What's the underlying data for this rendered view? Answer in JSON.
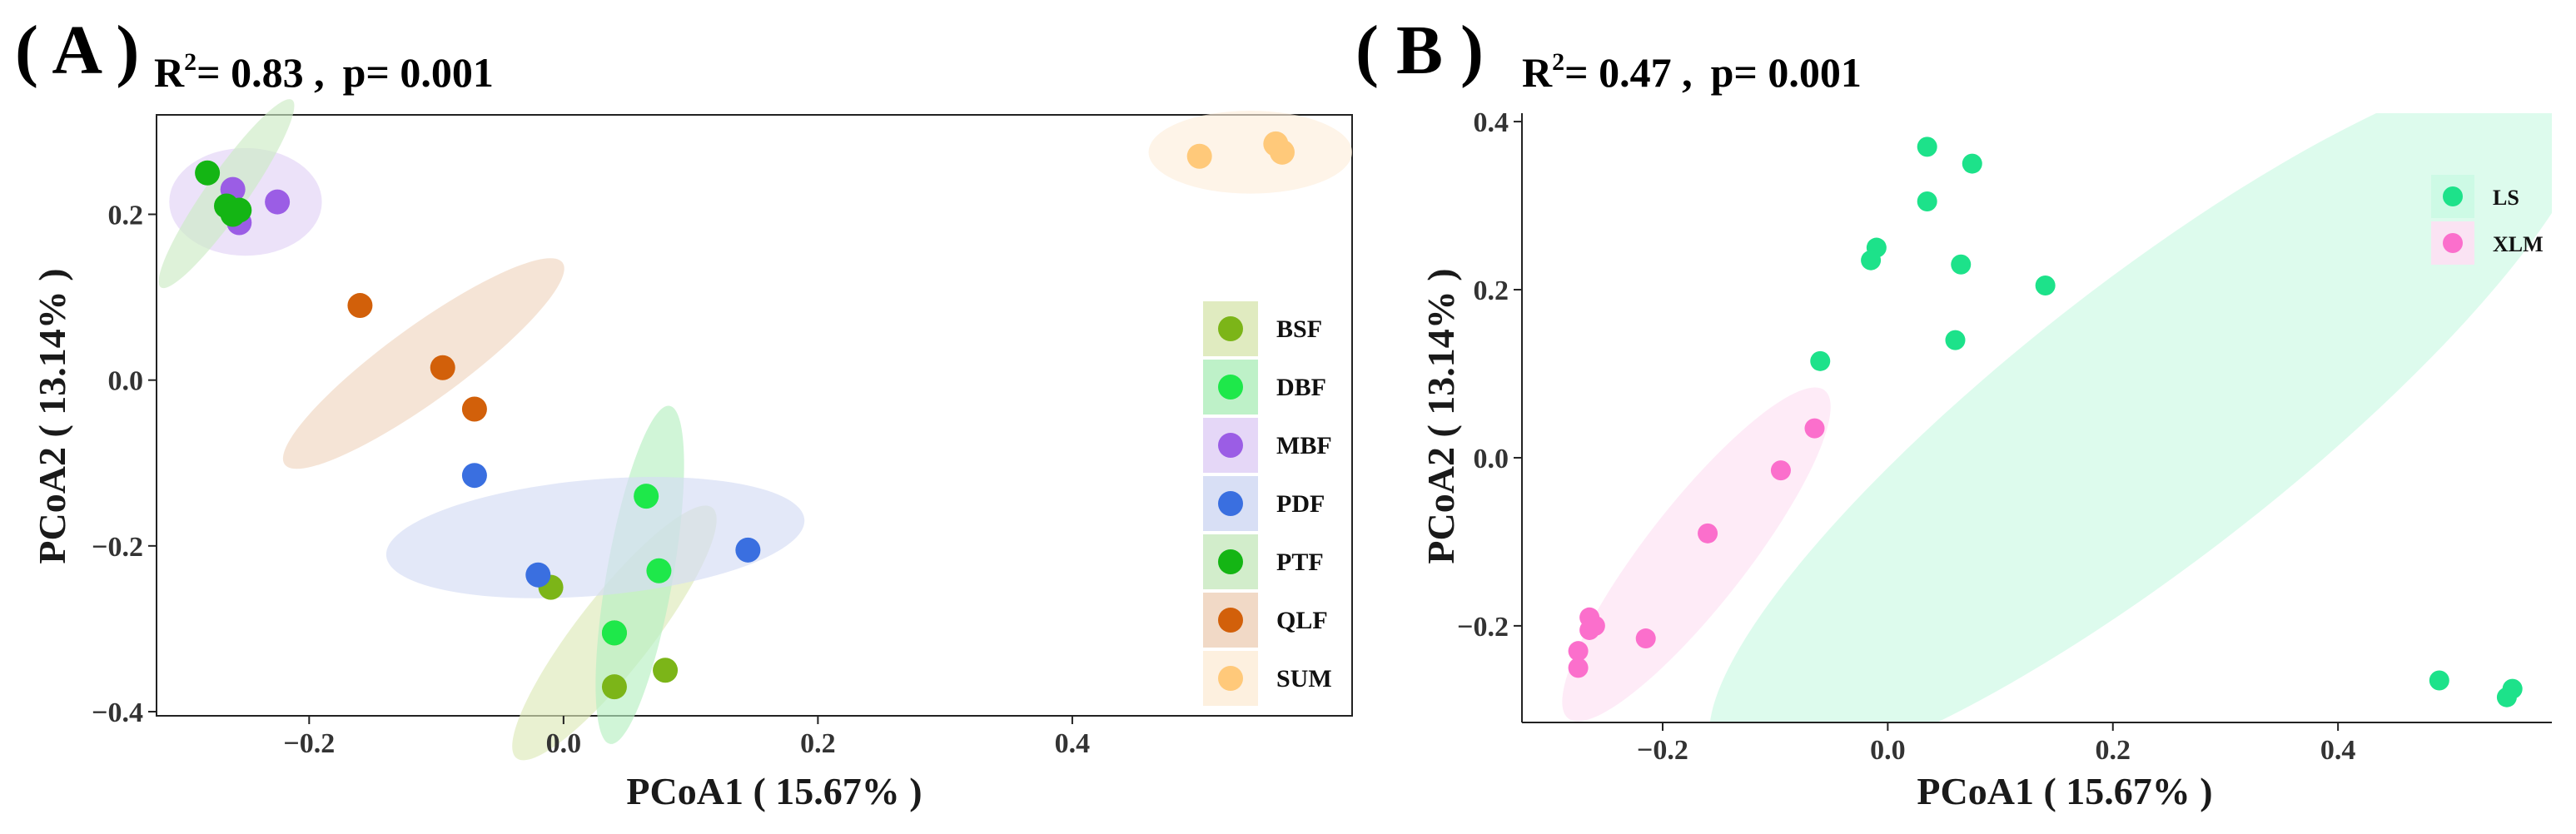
{
  "figure": {
    "panel_a_label": "( A )",
    "panel_b_label": "( B )"
  },
  "chart_data": [
    {
      "type": "scatter",
      "id": "A",
      "stat_r2_prefix": "R",
      "stat_r2_sup": "2",
      "stat_r2_value": "= 0.83 ,",
      "stat_p": "p= 0.001",
      "xlabel": "PCoA1 ( 15.67% )",
      "ylabel": "PCoA2 ( 13.14% )",
      "xlim": [
        -0.32,
        0.62
      ],
      "ylim": [
        -0.405,
        0.32
      ],
      "xticks": [
        -0.2,
        0.0,
        0.2,
        0.4
      ],
      "xtick_labels": [
        "−0.2",
        "0.0",
        "0.2",
        "0.4"
      ],
      "yticks": [
        -0.4,
        -0.2,
        0.0,
        0.2
      ],
      "ytick_labels": [
        "−0.4",
        "−0.2",
        "0.0",
        "0.2"
      ],
      "legend_position": "right",
      "series": [
        {
          "name": "BSF",
          "color": "#7cb518",
          "fill": "#dde9b9",
          "points": [
            [
              -0.01,
              -0.25
            ],
            [
              0.04,
              -0.37
            ],
            [
              0.08,
              -0.35
            ],
            [
              0.04,
              -0.305
            ]
          ],
          "ellipse": {
            "cx": 0.04,
            "cy": -0.305,
            "rx": 0.125,
            "ry": 0.045,
            "angle_deg": -52
          }
        },
        {
          "name": "DBF",
          "color": "#1ee84a",
          "fill": "#b7f0c2",
          "points": [
            [
              0.065,
              -0.14
            ],
            [
              0.075,
              -0.23
            ],
            [
              0.04,
              -0.305
            ]
          ],
          "ellipse": {
            "cx": 0.06,
            "cy": -0.235,
            "rx": 0.135,
            "ry": 0.04,
            "angle_deg": -80
          }
        },
        {
          "name": "MBF",
          "color": "#9b5de5",
          "fill": "#e2d3f6",
          "points": [
            [
              -0.26,
              0.23
            ],
            [
              -0.255,
              0.19
            ],
            [
              -0.225,
              0.215
            ]
          ],
          "ellipse": {
            "cx": -0.25,
            "cy": 0.215,
            "rx": 0.06,
            "ry": 0.065,
            "angle_deg": 0
          }
        },
        {
          "name": "PDF",
          "color": "#3a6fe0",
          "fill": "#d4dcf4",
          "points": [
            [
              -0.07,
              -0.115
            ],
            [
              -0.02,
              -0.235
            ],
            [
              0.145,
              -0.205
            ]
          ],
          "ellipse": {
            "cx": 0.025,
            "cy": -0.19,
            "rx": 0.165,
            "ry": 0.07,
            "angle_deg": -5
          }
        },
        {
          "name": "PTF",
          "color": "#14b514",
          "fill": "#cdebc5",
          "points": [
            [
              -0.28,
              0.25
            ],
            [
              -0.265,
              0.21
            ],
            [
              -0.255,
              0.205
            ],
            [
              -0.26,
              0.2
            ]
          ],
          "ellipse": {
            "cx": -0.265,
            "cy": 0.225,
            "rx": 0.09,
            "ry": 0.025,
            "angle_deg": -55
          }
        },
        {
          "name": "QLF",
          "color": "#d2600a",
          "fill": "#f0d5c0",
          "points": [
            [
              -0.16,
              0.09
            ],
            [
              -0.095,
              0.015
            ],
            [
              -0.07,
              -0.035
            ]
          ],
          "ellipse": {
            "cx": -0.11,
            "cy": 0.02,
            "rx": 0.135,
            "ry": 0.045,
            "angle_deg": -36
          }
        },
        {
          "name": "SUM",
          "color": "#ffc97a",
          "fill": "#fdeedc",
          "points": [
            [
              0.5,
              0.27
            ],
            [
              0.56,
              0.285
            ],
            [
              0.565,
              0.275
            ]
          ],
          "ellipse": {
            "cx": 0.54,
            "cy": 0.275,
            "rx": 0.08,
            "ry": 0.05,
            "angle_deg": 0
          }
        }
      ]
    },
    {
      "type": "scatter",
      "id": "B",
      "stat_r2_prefix": "R",
      "stat_r2_sup": "2",
      "stat_r2_value": "= 0.47 ,",
      "stat_p": "p= 0.001",
      "xlabel": "PCoA1 ( 15.67% )",
      "ylabel": "PCoA2 ( 13.14% )",
      "xlim": [
        -0.325,
        0.59
      ],
      "ylim": [
        -0.315,
        0.41
      ],
      "xticks": [
        -0.2,
        0.0,
        0.2,
        0.4
      ],
      "xtick_labels": [
        "−0.2",
        "0.0",
        "0.2",
        "0.4"
      ],
      "yticks": [
        -0.2,
        0.0,
        0.2,
        0.4
      ],
      "ytick_labels": [
        "−0.2",
        "0.0",
        "0.2",
        "0.4"
      ],
      "legend_position": "top-right",
      "series": [
        {
          "name": "LS",
          "color": "#1de28a",
          "fill": "#cbf9e3",
          "points": [
            [
              0.035,
              0.37
            ],
            [
              0.075,
              0.35
            ],
            [
              0.035,
              0.305
            ],
            [
              -0.01,
              0.25
            ],
            [
              -0.015,
              0.235
            ],
            [
              0.065,
              0.23
            ],
            [
              0.14,
              0.205
            ],
            [
              0.06,
              0.14
            ],
            [
              -0.06,
              0.115
            ],
            [
              0.49,
              -0.265
            ],
            [
              0.555,
              -0.275
            ],
            [
              0.55,
              -0.285
            ]
          ],
          "ellipse": {
            "cx": 0.235,
            "cy": 0.045,
            "rx": 0.49,
            "ry": 0.165,
            "angle_deg": -38
          }
        },
        {
          "name": "XLM",
          "color": "#fb6fcc",
          "fill": "#fde0f3",
          "points": [
            [
              -0.065,
              0.035
            ],
            [
              -0.095,
              -0.015
            ],
            [
              -0.16,
              -0.09
            ],
            [
              -0.215,
              -0.215
            ],
            [
              -0.265,
              -0.19
            ],
            [
              -0.265,
              -0.205
            ],
            [
              -0.26,
              -0.2
            ],
            [
              -0.275,
              -0.23
            ],
            [
              -0.275,
              -0.25
            ]
          ],
          "ellipse": {
            "cx": -0.17,
            "cy": -0.115,
            "rx": 0.185,
            "ry": 0.06,
            "angle_deg": -52
          }
        }
      ]
    }
  ]
}
